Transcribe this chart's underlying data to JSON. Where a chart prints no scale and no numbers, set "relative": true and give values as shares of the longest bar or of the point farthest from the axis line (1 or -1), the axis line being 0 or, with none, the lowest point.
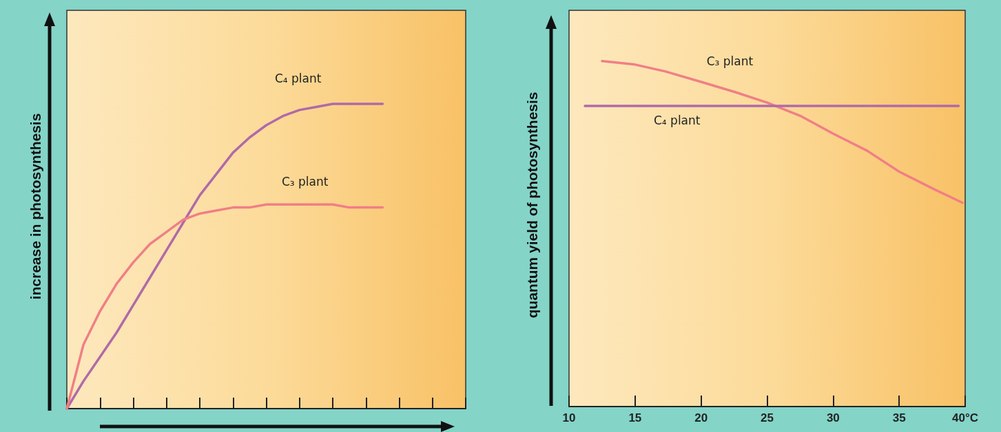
{
  "chart_data": [
    {
      "type": "line",
      "relative": true,
      "ylabel": "increase in photosynthesis",
      "tick_labels": false,
      "marker": "none",
      "line_style": "solid",
      "categories": [
        null,
        null,
        null,
        null,
        null,
        null,
        null,
        null,
        null,
        null,
        null,
        null,
        null,
        null,
        null,
        null,
        null,
        null,
        null,
        null,
        null,
        null,
        null,
        null,
        null
      ],
      "series": [
        {
          "name": "C₄ plant",
          "color": "#b06aa8",
          "values": [
            0,
            0.09,
            0.17,
            0.25,
            0.34,
            0.43,
            0.52,
            0.61,
            0.7,
            0.77,
            0.84,
            0.89,
            0.93,
            0.96,
            0.98,
            0.99,
            1,
            1,
            1,
            1,
            null,
            null,
            null,
            null,
            null
          ]
        },
        {
          "name": "C₃ plant",
          "color": "#f07f86",
          "values": [
            0,
            0.21,
            0.32,
            0.41,
            0.48,
            0.54,
            0.58,
            0.62,
            0.64,
            0.65,
            0.66,
            0.66,
            0.67,
            0.67,
            0.67,
            0.67,
            0.67,
            0.66,
            0.66,
            0.66,
            null,
            null,
            null,
            null,
            null
          ]
        }
      ]
    },
    {
      "type": "line",
      "relative": true,
      "ylabel": "quantum yield of photosynthesis",
      "tick_labels": "x",
      "marker": "none",
      "line_style": "solid",
      "xlim": [
        10,
        40
      ],
      "xticks": [
        10,
        15,
        20,
        25,
        30,
        35,
        {
          "value": 40,
          "label": "40°C"
        }
      ],
      "series": [
        {
          "name": "C₃ plant",
          "color": "#f07f86",
          "x": [
            12.5,
            15,
            17.3,
            20,
            22.6,
            25,
            27.6,
            30,
            32.6,
            35,
            37.6,
            39.8
          ],
          "values": [
            1,
            0.99,
            0.97,
            0.94,
            0.91,
            0.88,
            0.84,
            0.79,
            0.74,
            0.68,
            0.63,
            0.59
          ]
        },
        {
          "name": "C₄ plant",
          "color": "#b06aa8",
          "x": [
            11.2,
            39.5
          ],
          "values": [
            0.87,
            0.87
          ]
        }
      ]
    }
  ]
}
